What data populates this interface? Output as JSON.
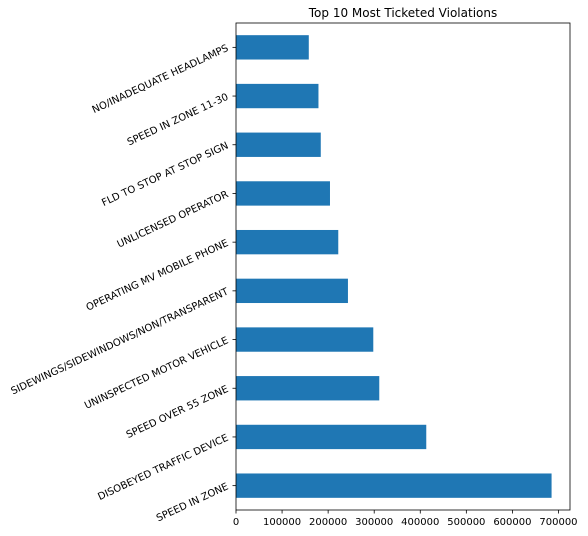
{
  "chart_data": {
    "type": "bar",
    "orientation": "horizontal",
    "title": "Top 10 Most Ticketed Violations",
    "xlabel": "",
    "ylabel": "",
    "categories": [
      "SPEED IN ZONE",
      "DISOBEYED TRAFFIC DEVICE",
      "SPEED OVER 55 ZONE",
      "UNINSPECTED MOTOR VEHICLE",
      "SIDEWINGS/SIDEWINDOWS/NON/TRANSPARENT",
      "OPERATING MV MOBILE PHONE",
      "UNLICENSED OPERATOR",
      "FLD TO STOP AT STOP SIGN",
      "SPEED IN ZONE 11-30",
      "NO/INADEQUATE HEADLAMPS"
    ],
    "values": [
      685000,
      413000,
      311000,
      298000,
      243000,
      222000,
      204000,
      184000,
      179000,
      158000
    ],
    "xlim": [
      0,
      725000
    ],
    "xticks": [
      0,
      100000,
      200000,
      300000,
      400000,
      500000,
      600000,
      700000
    ],
    "xtick_labels": [
      "0",
      "100000",
      "200000",
      "300000",
      "400000",
      "500000",
      "600000",
      "700000"
    ],
    "grid": false,
    "legend": false,
    "bar_color": "#1f77b4"
  }
}
